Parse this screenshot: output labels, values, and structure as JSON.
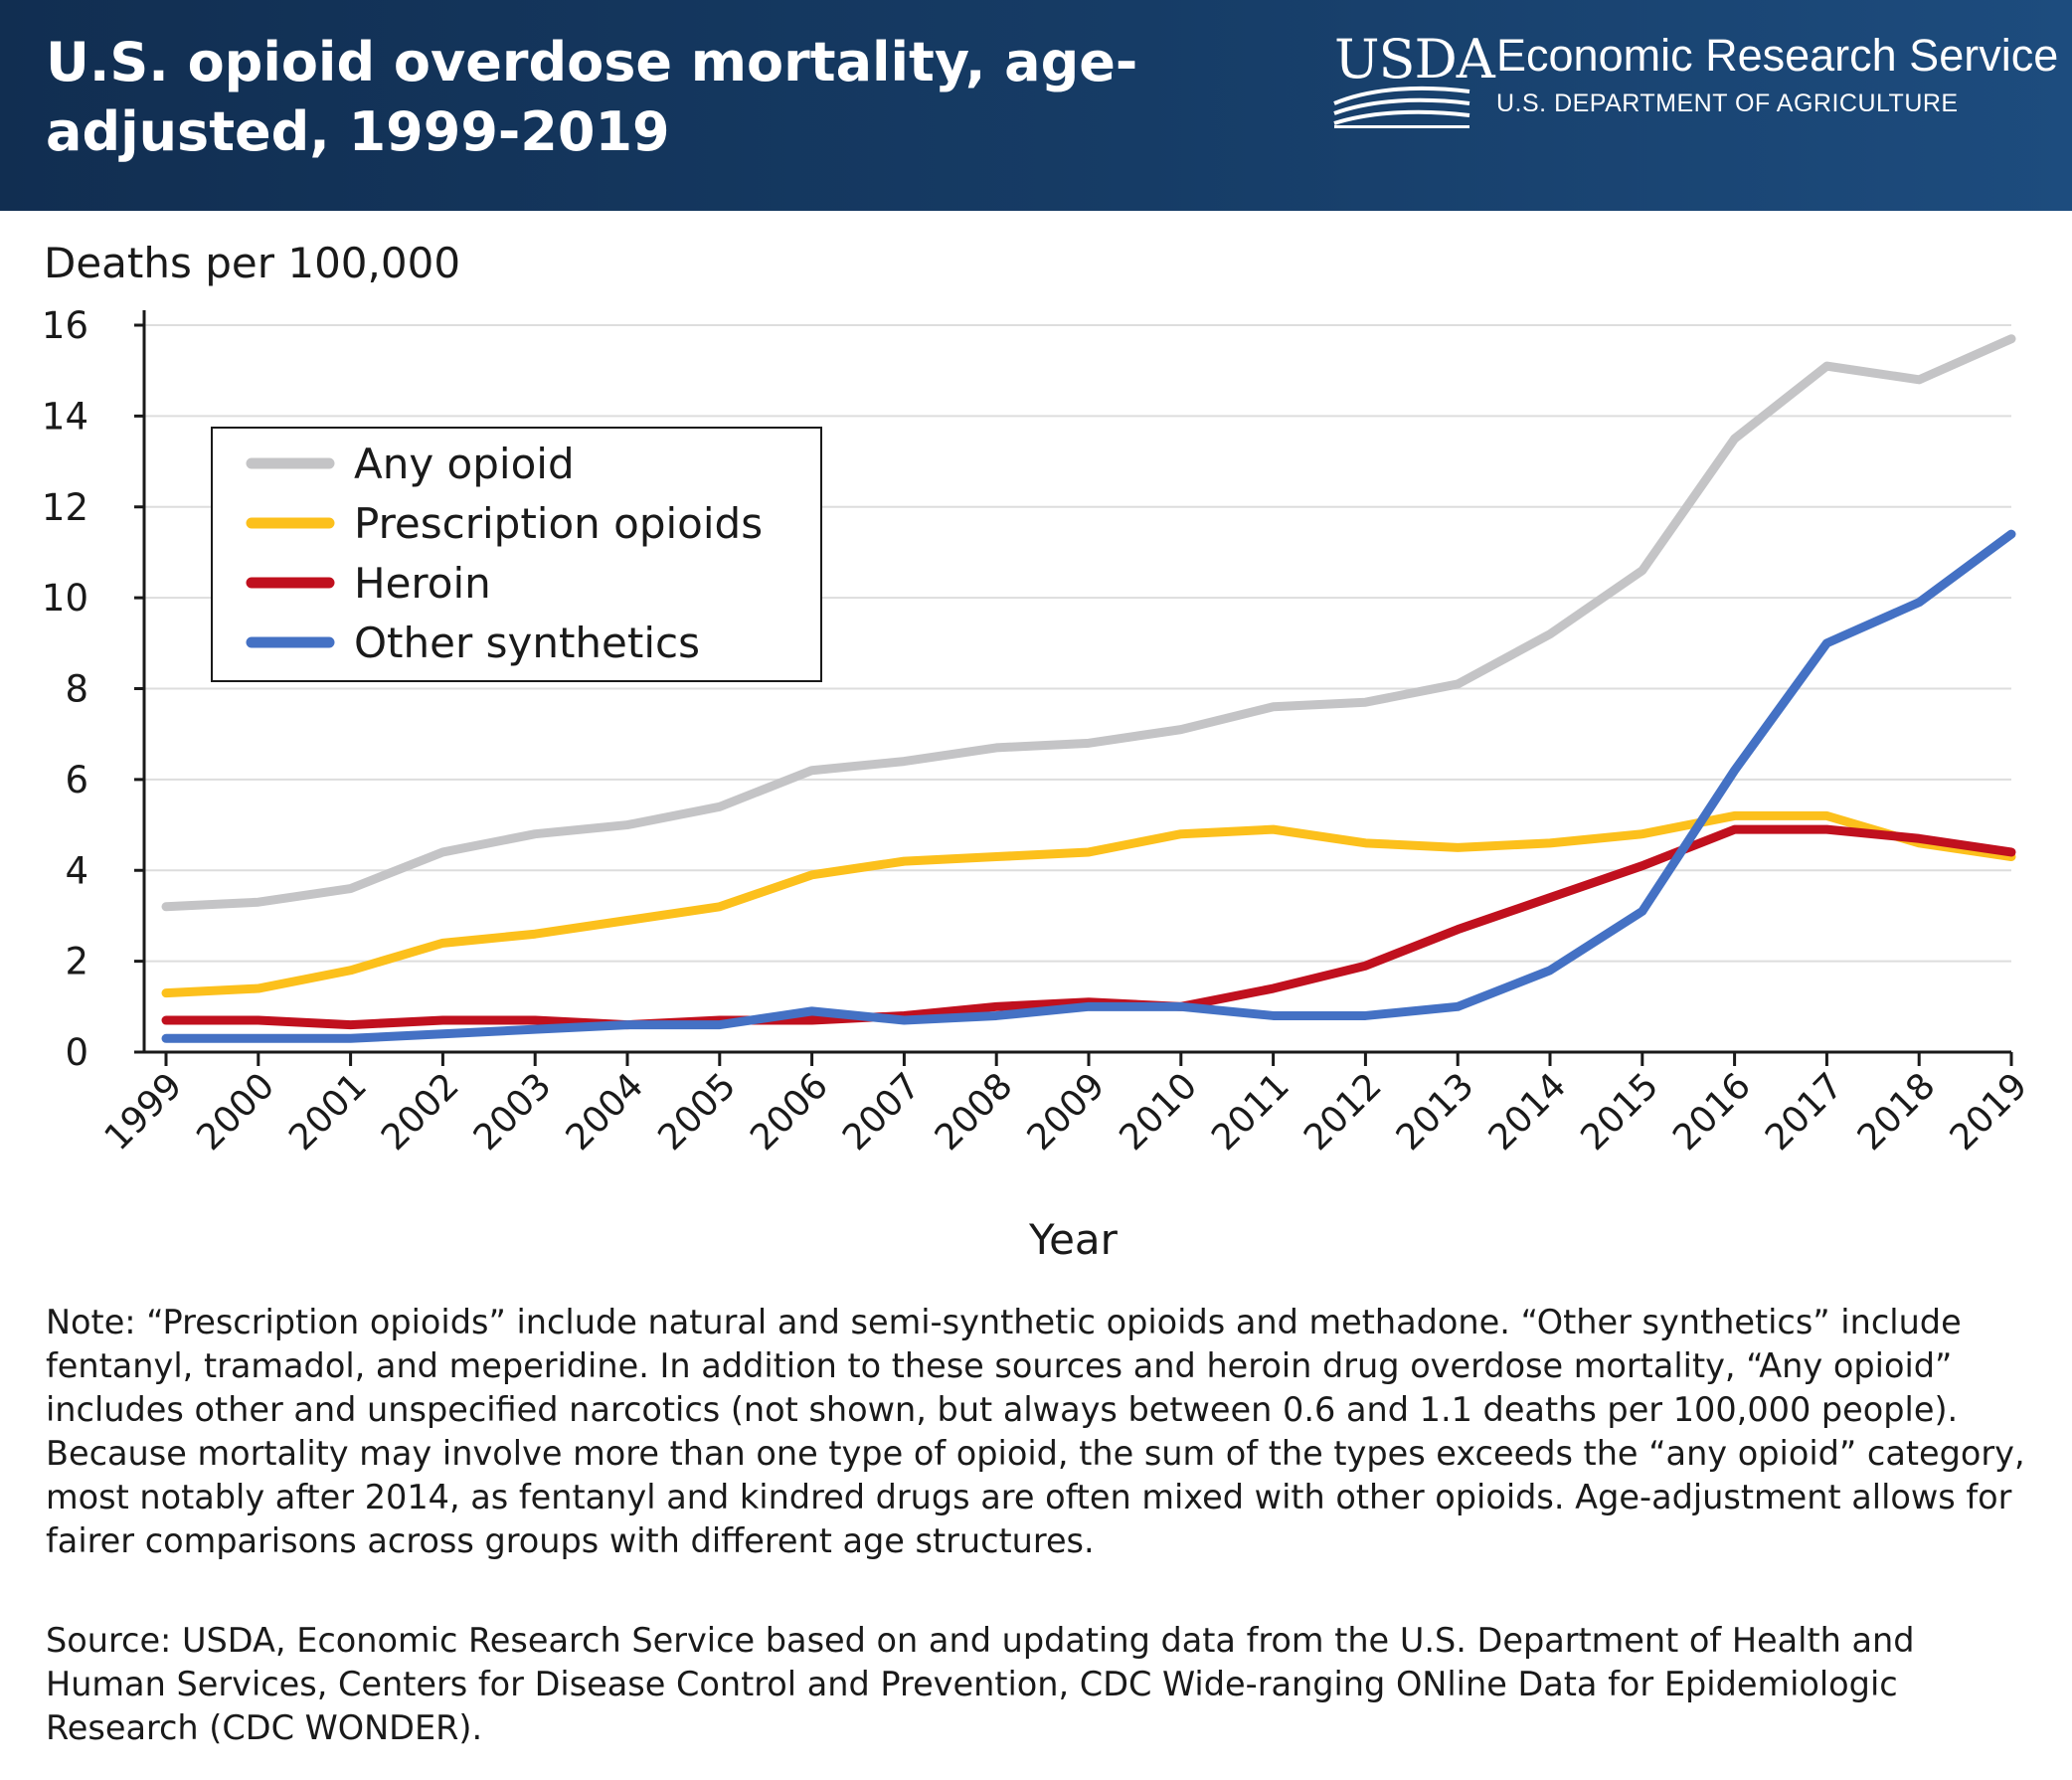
{
  "header": {
    "title": "U.S. opioid overdose mortality, age-adjusted, 1999-2019",
    "agency_logo_text": "USDA",
    "agency_name": "Economic Research Service",
    "department": "U.S. DEPARTMENT OF AGRICULTURE"
  },
  "colors": {
    "header_bg": "#163c66",
    "any_opioid": "#c4c4c6",
    "prescription_opioids": "#fcc01c",
    "heroin": "#c0101e",
    "other_synthetics": "#4471c4",
    "grid": "#dddddd"
  },
  "chart_data": {
    "type": "line",
    "title": "U.S. opioid overdose mortality, age-adjusted, 1999-2019",
    "xlabel": "Year",
    "ylabel": "Deaths per 100,000",
    "ylim": [
      0,
      16
    ],
    "yticks": [
      0,
      2,
      4,
      6,
      8,
      10,
      12,
      14,
      16
    ],
    "grid": true,
    "legend_position": "top-left",
    "x": [
      "1999",
      "2000",
      "2001",
      "2002",
      "2003",
      "2004",
      "2005",
      "2006",
      "2007",
      "2008",
      "2009",
      "2010",
      "2011",
      "2012",
      "2013",
      "2014",
      "2015",
      "2016",
      "2017",
      "2018",
      "2019"
    ],
    "series": [
      {
        "name": "Any opioid",
        "color": "#c4c4c6",
        "values": [
          3.2,
          3.3,
          3.6,
          4.4,
          4.8,
          5.0,
          5.4,
          6.2,
          6.4,
          6.7,
          6.8,
          7.1,
          7.6,
          7.7,
          8.1,
          9.2,
          10.6,
          13.5,
          15.1,
          14.8,
          15.7
        ]
      },
      {
        "name": "Prescription opioids",
        "color": "#fcc01c",
        "values": [
          1.3,
          1.4,
          1.8,
          2.4,
          2.6,
          2.9,
          3.2,
          3.9,
          4.2,
          4.3,
          4.4,
          4.8,
          4.9,
          4.6,
          4.5,
          4.6,
          4.8,
          5.2,
          5.2,
          4.6,
          4.3
        ]
      },
      {
        "name": "Heroin",
        "color": "#c0101e",
        "values": [
          0.7,
          0.7,
          0.6,
          0.7,
          0.7,
          0.6,
          0.7,
          0.7,
          0.8,
          1.0,
          1.1,
          1.0,
          1.4,
          1.9,
          2.7,
          3.4,
          4.1,
          4.9,
          4.9,
          4.7,
          4.4
        ]
      },
      {
        "name": "Other synthetics",
        "color": "#4471c4",
        "values": [
          0.3,
          0.3,
          0.3,
          0.4,
          0.5,
          0.6,
          0.6,
          0.9,
          0.7,
          0.8,
          1.0,
          1.0,
          0.8,
          0.8,
          1.0,
          1.8,
          3.1,
          6.2,
          9.0,
          9.9,
          11.4
        ]
      }
    ]
  },
  "note": "Note: “Prescription opioids” include natural and semi-synthetic opioids and methadone. “Other synthetics” include fentanyl, tramadol, and meperidine. In addition to these sources and heroin drug overdose mortality, “Any opioid” includes other and unspecified narcotics (not shown, but always between 0.6 and 1.1 deaths per 100,000 people). Because mortality may involve more than one type of opioid, the sum of the types exceeds the “any opioid” category, most notably after 2014, as fentanyl and kindred drugs are often mixed with other opioids. Age-adjustment allows for fairer comparisons across groups with different age structures.",
  "source": "Source: USDA, Economic Research Service based on and updating data from the U.S. Department of Health and Human Services, Centers for Disease Control and Prevention, CDC Wide-ranging ONline Data for Epidemiologic Research (CDC WONDER)."
}
